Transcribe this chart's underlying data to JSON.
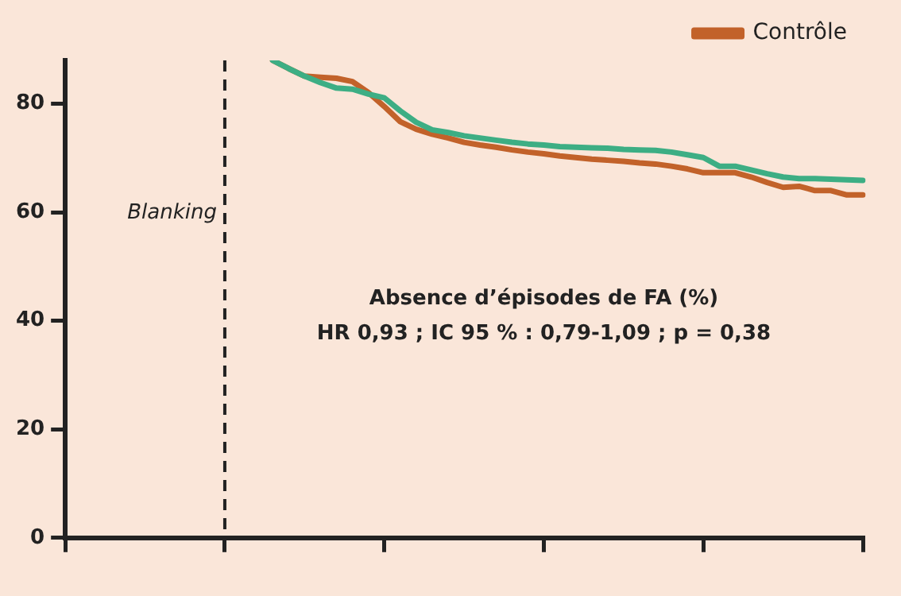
{
  "chart_data": {
    "type": "line",
    "categories": [
      null,
      null,
      null,
      null,
      null,
      null,
      null,
      null,
      null,
      null,
      null,
      null,
      null,
      null,
      null,
      null,
      null,
      null,
      null,
      null,
      null,
      null,
      null,
      null,
      null,
      null,
      null,
      null,
      null,
      null,
      null,
      null,
      null,
      null,
      null,
      null,
      null,
      null,
      null,
      null,
      null,
      null,
      null,
      null,
      null,
      null,
      null,
      null,
      null,
      null,
      null
    ],
    "ylim": [
      0,
      88
    ],
    "yticks": [
      0,
      20,
      40,
      60,
      80
    ],
    "grid": false,
    "legend": "top right",
    "marker": "none",
    "line_style": "solid",
    "series": [
      {
        "color": "#3dae84",
        "values": [
          null,
          null,
          null,
          null,
          null,
          null,
          null,
          null,
          null,
          null,
          null,
          null,
          null,
          88.0,
          86.5,
          85.1,
          83.9,
          82.9,
          82.7,
          81.8,
          81.1,
          78.7,
          76.6,
          75.2,
          74.7,
          74.1,
          73.7,
          73.3,
          72.9,
          72.6,
          72.4,
          72.1,
          72.0,
          71.9,
          71.8,
          71.6,
          71.5,
          71.4,
          71.1,
          70.6,
          70.1,
          68.5,
          68.5,
          67.8,
          67.1,
          66.5,
          66.2,
          66.2,
          66.1,
          66.0,
          65.9
        ]
      },
      {
        "name": "Contrôle",
        "color": "#c2622a",
        "values": [
          null,
          null,
          null,
          null,
          null,
          null,
          null,
          null,
          null,
          null,
          null,
          null,
          null,
          88.0,
          86.5,
          85.1,
          84.9,
          84.7,
          84.1,
          82.1,
          79.5,
          76.7,
          75.3,
          74.4,
          73.7,
          72.9,
          72.4,
          72.0,
          71.5,
          71.1,
          70.8,
          70.4,
          70.1,
          69.8,
          69.6,
          69.4,
          69.1,
          68.9,
          68.5,
          68.0,
          67.3,
          67.3,
          67.3,
          66.5,
          65.5,
          64.6,
          64.8,
          64.0,
          64.0,
          63.2,
          63.2
        ]
      }
    ],
    "annotations": [
      "Blanking",
      "Absence d’épisodes de FA (%)",
      "HR 0,93 ; IC 95 % : 0,79-1,09 ; p = 0,38"
    ]
  }
}
